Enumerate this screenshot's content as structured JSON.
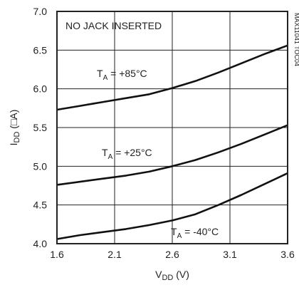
{
  "chart_data": {
    "type": "line",
    "title": "",
    "annotation": "NO JACK INSERTED",
    "figure_code": "MAX11041 TOC04",
    "xlabel": {
      "main": "V",
      "sub": "DD",
      "unit": " (V)"
    },
    "ylabel": {
      "main": "I",
      "sub": "DD",
      "unit": " (□A)"
    },
    "xlim": [
      1.6,
      3.6
    ],
    "ylim": [
      4.0,
      7.0
    ],
    "grid": true,
    "xticks": [
      "1.6",
      "2.1",
      "2.6",
      "3.1",
      "3.6"
    ],
    "yticks": [
      "4.0",
      "4.5",
      "5.0",
      "5.5",
      "6.0",
      "6.5",
      "7.0"
    ],
    "series": [
      {
        "name_main": "T",
        "name_sub": "A",
        "name_rest": " = +85°C",
        "x": [
          1.6,
          1.8,
          2.0,
          2.2,
          2.4,
          2.6,
          2.8,
          3.0,
          3.2,
          3.4,
          3.6
        ],
        "y": [
          5.73,
          5.78,
          5.83,
          5.88,
          5.93,
          6.01,
          6.1,
          6.21,
          6.33,
          6.45,
          6.56
        ]
      },
      {
        "name_main": "T",
        "name_sub": "A",
        "name_rest": " = +25°C",
        "x": [
          1.6,
          1.8,
          2.0,
          2.2,
          2.4,
          2.6,
          2.8,
          3.0,
          3.2,
          3.4,
          3.6
        ],
        "y": [
          4.76,
          4.8,
          4.84,
          4.88,
          4.93,
          5.0,
          5.08,
          5.18,
          5.29,
          5.41,
          5.53
        ]
      },
      {
        "name_main": "T",
        "name_sub": "A",
        "name_rest": " = -40°C",
        "x": [
          1.6,
          1.8,
          2.0,
          2.2,
          2.4,
          2.6,
          2.8,
          3.0,
          3.2,
          3.4,
          3.6
        ],
        "y": [
          4.06,
          4.11,
          4.15,
          4.19,
          4.24,
          4.3,
          4.38,
          4.5,
          4.63,
          4.77,
          4.91
        ]
      }
    ]
  }
}
